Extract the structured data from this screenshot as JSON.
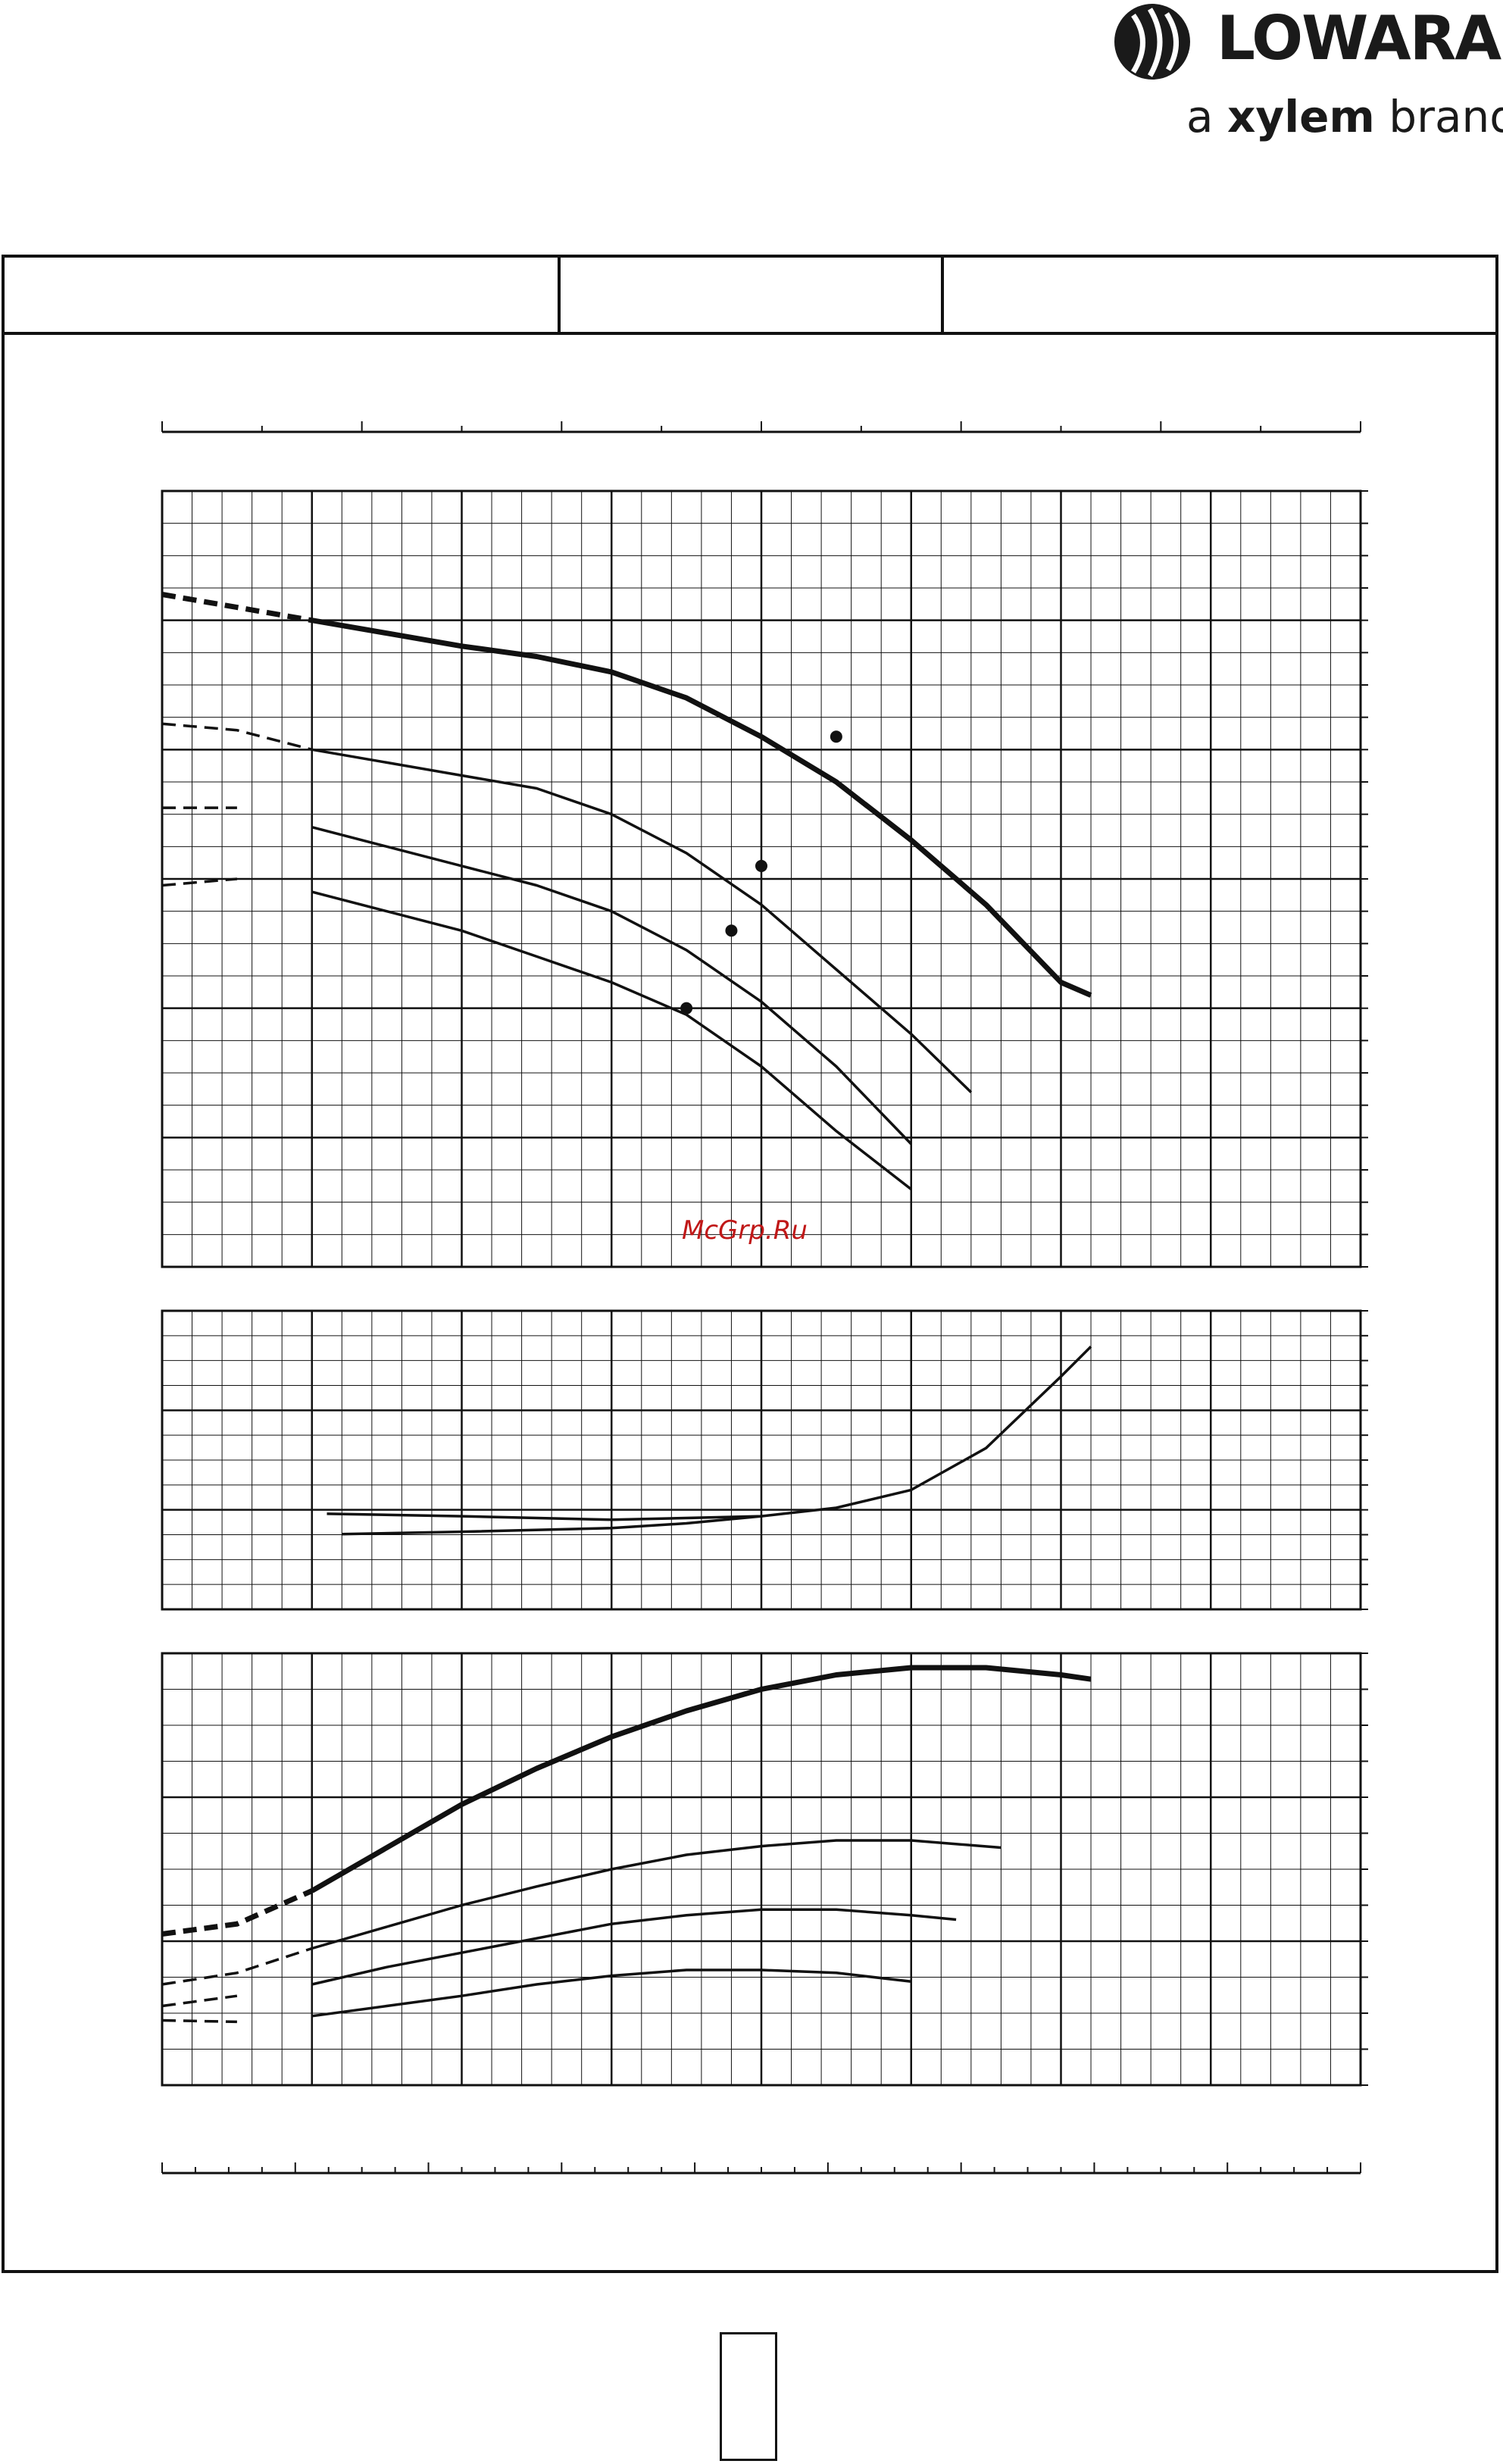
{
  "brand": {
    "name": "LOWARA",
    "tagline_prefix": "a",
    "tagline_brand": "xylem",
    "tagline_suffix": "brand"
  },
  "watermark": "McGrp.Ru",
  "chart_data": [
    {
      "panel": "head",
      "type": "line",
      "xlim": [
        0,
        8
      ],
      "ylim": [
        0,
        6
      ],
      "grid": true,
      "series": [
        {
          "role": "largest-impeller",
          "weight": "bold",
          "dashed_start": 1.0,
          "x": [
            0,
            0.5,
            1.0,
            1.5,
            2.0,
            2.5,
            3.0,
            3.5,
            4.0,
            4.5,
            5.0,
            5.5,
            6.0,
            6.2
          ],
          "y": [
            5.2,
            5.1,
            5.0,
            4.9,
            4.8,
            4.72,
            4.6,
            4.4,
            4.1,
            3.75,
            3.3,
            2.8,
            2.2,
            2.1
          ]
        },
        {
          "role": "impeller-2",
          "weight": "normal",
          "dashed_start": 1.0,
          "x": [
            0,
            0.5,
            1.0,
            1.5,
            2.0,
            2.5,
            3.0,
            3.5,
            4.0,
            4.5,
            5.0,
            5.4
          ],
          "y": [
            4.2,
            4.15,
            4.0,
            3.9,
            3.8,
            3.7,
            3.5,
            3.2,
            2.8,
            2.3,
            1.8,
            1.35
          ]
        },
        {
          "role": "impeller-3",
          "weight": "normal",
          "dashed_start": 0.8,
          "x": [
            0,
            0.5,
            1.0,
            1.5,
            2.0,
            2.5,
            3.0,
            3.5,
            4.0,
            4.5,
            5.0
          ],
          "y": [
            3.55,
            3.55,
            3.4,
            3.25,
            3.1,
            2.95,
            2.75,
            2.45,
            2.05,
            1.55,
            0.95
          ]
        },
        {
          "role": "smallest-impeller",
          "weight": "normal",
          "dashed_start": 0.8,
          "x": [
            0,
            0.5,
            1.0,
            1.5,
            2.0,
            2.5,
            3.0,
            3.5,
            4.0,
            4.5,
            5.0
          ],
          "y": [
            2.95,
            3.0,
            2.9,
            2.75,
            2.6,
            2.4,
            2.2,
            1.95,
            1.55,
            1.05,
            0.6
          ]
        }
      ],
      "operating_points": [
        {
          "x": 4.5,
          "y": 4.1
        },
        {
          "x": 4.0,
          "y": 3.1
        },
        {
          "x": 3.8,
          "y": 2.6
        },
        {
          "x": 3.5,
          "y": 2.0
        }
      ]
    },
    {
      "panel": "npsh",
      "type": "line",
      "xlim": [
        0,
        8
      ],
      "ylim": [
        0,
        2.5
      ],
      "grid": true,
      "series": [
        {
          "x": [
            1.1,
            2.0,
            3.0,
            4.0,
            4.5,
            5.0,
            5.5,
            6.0,
            6.2
          ],
          "y": [
            0.8,
            0.78,
            0.75,
            0.78,
            0.85,
            1.0,
            1.35,
            1.95,
            2.2
          ]
        },
        {
          "x": [
            1.2,
            2.0,
            3.0,
            3.5,
            4.0
          ],
          "y": [
            0.63,
            0.65,
            0.68,
            0.72,
            0.78
          ]
        }
      ]
    },
    {
      "panel": "power",
      "type": "line",
      "xlim": [
        0,
        8
      ],
      "ylim": [
        0,
        3
      ],
      "grid": true,
      "series": [
        {
          "weight": "bold",
          "dashed_start": 1.0,
          "x": [
            0,
            0.5,
            1.0,
            1.5,
            2.0,
            2.5,
            3.0,
            3.5,
            4.0,
            4.5,
            5.0,
            5.5,
            6.0,
            6.2
          ],
          "y": [
            1.05,
            1.12,
            1.35,
            1.65,
            1.95,
            2.2,
            2.42,
            2.6,
            2.75,
            2.85,
            2.9,
            2.9,
            2.85,
            2.82
          ]
        },
        {
          "weight": "normal",
          "dashed_start": 1.0,
          "x": [
            0,
            0.5,
            1.0,
            1.5,
            2.0,
            2.5,
            3.0,
            3.5,
            4.0,
            4.5,
            5.0,
            5.6
          ],
          "y": [
            0.7,
            0.78,
            0.95,
            1.1,
            1.25,
            1.38,
            1.5,
            1.6,
            1.66,
            1.7,
            1.7,
            1.65
          ]
        },
        {
          "weight": "normal",
          "dashed_start": 0.8,
          "x": [
            0,
            0.5,
            1.0,
            1.5,
            2.0,
            2.5,
            3.0,
            3.5,
            4.0,
            4.5,
            5.0,
            5.3
          ],
          "y": [
            0.55,
            0.62,
            0.7,
            0.82,
            0.92,
            1.02,
            1.12,
            1.18,
            1.22,
            1.22,
            1.18,
            1.15
          ]
        },
        {
          "weight": "normal",
          "dashed_start": 0.8,
          "x": [
            0,
            0.5,
            1.0,
            1.5,
            2.0,
            2.5,
            3.0,
            3.5,
            4.0,
            4.5,
            5.0
          ],
          "y": [
            0.45,
            0.44,
            0.48,
            0.55,
            0.62,
            0.7,
            0.76,
            0.8,
            0.8,
            0.78,
            0.72
          ]
        }
      ]
    }
  ]
}
